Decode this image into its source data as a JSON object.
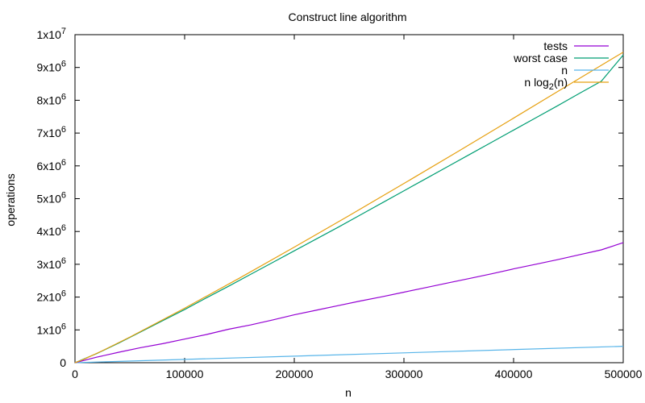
{
  "chart_data": {
    "type": "line",
    "title": "Construct line algorithm",
    "xlabel": "n",
    "ylabel": "operations",
    "xlim": [
      0,
      500000
    ],
    "ylim": [
      0,
      10000000
    ],
    "x_ticks": [
      0,
      100000,
      200000,
      300000,
      400000,
      500000
    ],
    "x_tick_labels": [
      "0",
      "100000",
      "200000",
      "300000",
      "400000",
      "500000"
    ],
    "y_ticks": [
      0,
      1000000,
      2000000,
      3000000,
      4000000,
      5000000,
      6000000,
      7000000,
      8000000,
      9000000,
      10000000
    ],
    "y_tick_labels": [
      {
        "base": "0",
        "exp": ""
      },
      {
        "base": "1x10",
        "exp": "6"
      },
      {
        "base": "2x10",
        "exp": "6"
      },
      {
        "base": "3x10",
        "exp": "6"
      },
      {
        "base": "4x10",
        "exp": "6"
      },
      {
        "base": "5x10",
        "exp": "6"
      },
      {
        "base": "6x10",
        "exp": "6"
      },
      {
        "base": "7x10",
        "exp": "6"
      },
      {
        "base": "8x10",
        "exp": "6"
      },
      {
        "base": "9x10",
        "exp": "6"
      },
      {
        "base": "1x10",
        "exp": "7"
      }
    ],
    "grid": false,
    "legend_position": "top-right",
    "series": [
      {
        "name": "tests",
        "color": "#9400d3",
        "x": [
          0,
          20000,
          40000,
          60000,
          80000,
          100000,
          120000,
          140000,
          160000,
          180000,
          200000,
          220000,
          240000,
          260000,
          280000,
          300000,
          320000,
          340000,
          360000,
          380000,
          400000,
          420000,
          440000,
          460000,
          480000,
          500000
        ],
        "y": [
          0,
          170000,
          320000,
          460000,
          580000,
          720000,
          860000,
          1020000,
          1150000,
          1300000,
          1460000,
          1600000,
          1740000,
          1880000,
          2010000,
          2150000,
          2290000,
          2430000,
          2570000,
          2710000,
          2860000,
          3000000,
          3140000,
          3290000,
          3440000,
          3660000
        ]
      },
      {
        "name": "worst case",
        "color": "#009e73",
        "x": [
          0,
          20000,
          40000,
          60000,
          80000,
          100000,
          120000,
          140000,
          160000,
          180000,
          200000,
          220000,
          240000,
          260000,
          280000,
          300000,
          320000,
          340000,
          360000,
          380000,
          400000,
          420000,
          440000,
          460000,
          480000,
          500000
        ],
        "y": [
          0,
          280000,
          600000,
          940000,
          1280000,
          1620000,
          1980000,
          2330000,
          2690000,
          3050000,
          3410000,
          3770000,
          4130000,
          4500000,
          4870000,
          5240000,
          5610000,
          5980000,
          6350000,
          6720000,
          7090000,
          7460000,
          7830000,
          8210000,
          8580000,
          9380000
        ]
      },
      {
        "name": "n",
        "color": "#56b4e9",
        "x": [
          0,
          500000
        ],
        "y": [
          0,
          500000
        ]
      },
      {
        "name": "n log_2(n)",
        "color": "#e6a010",
        "x": [
          2,
          5000,
          10000,
          25000,
          50000,
          100000,
          150000,
          200000,
          250000,
          300000,
          350000,
          400000,
          450000,
          500000
        ],
        "y": [
          2,
          61439,
          132877,
          365241,
          780482,
          1660964,
          2578511,
          3521928,
          4484857,
          5463022,
          6453480,
          7455856,
          8464738,
          9465784
        ]
      }
    ]
  },
  "legend": {
    "series_labels": [
      {
        "text": "tests",
        "sub": "",
        "after": ""
      },
      {
        "text": "worst case",
        "sub": "",
        "after": ""
      },
      {
        "text": "n",
        "sub": "",
        "after": ""
      },
      {
        "text": "n log",
        "sub": "2",
        "after": "(n)"
      }
    ]
  }
}
